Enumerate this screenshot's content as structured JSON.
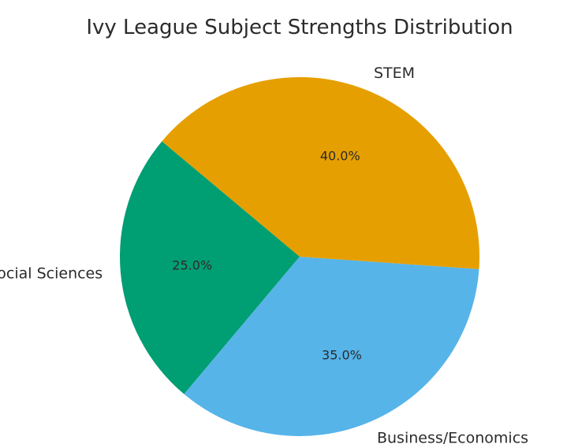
{
  "chart_data": {
    "type": "pie",
    "title": "Ivy League Subject Strengths Distribution",
    "categories": [
      "Humanities/Social Sciences",
      "Business/Economics",
      "STEM"
    ],
    "values": [
      25.0,
      35.0,
      40.0
    ],
    "value_labels": [
      "25.0%",
      "35.0%",
      "40.0%"
    ],
    "colors": [
      "#009e73",
      "#56b4e9",
      "#e69f00"
    ],
    "start_angle_deg": 140,
    "direction": "counterclockwise",
    "legend": "none"
  }
}
